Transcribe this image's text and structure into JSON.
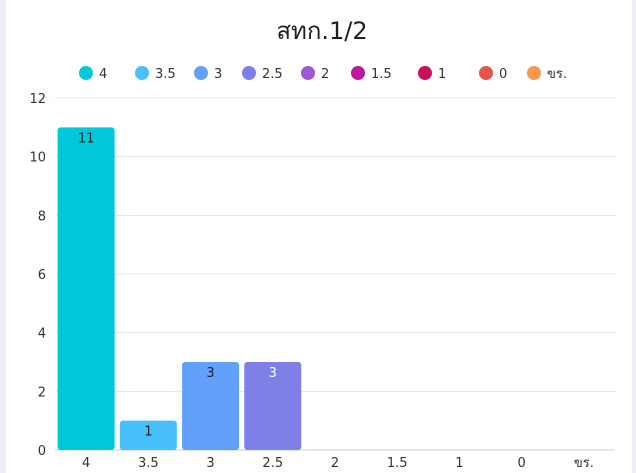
{
  "chart_data": {
    "type": "bar",
    "title": "สทก.1/2",
    "categories": [
      "4",
      "3.5",
      "3",
      "2.5",
      "2",
      "1.5",
      "1",
      "0",
      "ขร."
    ],
    "values": [
      11,
      1,
      3,
      3,
      0,
      0,
      0,
      0,
      0
    ],
    "data_labels": [
      "11",
      "1",
      "3",
      "3",
      "",
      "",
      "",
      "",
      ""
    ],
    "colors": [
      "#00c8da",
      "#47c0fb",
      "#62a1fb",
      "#7f7fe8",
      "#9d58d6",
      "#c0179e",
      "#c90f5c",
      "#e5534b",
      "#f7964f"
    ],
    "ylim": [
      0,
      12
    ],
    "yticks": [
      "0",
      "2",
      "4",
      "6",
      "8",
      "10",
      "12"
    ],
    "grid": true,
    "legend_position": "top",
    "xlabel": "",
    "ylabel": ""
  }
}
